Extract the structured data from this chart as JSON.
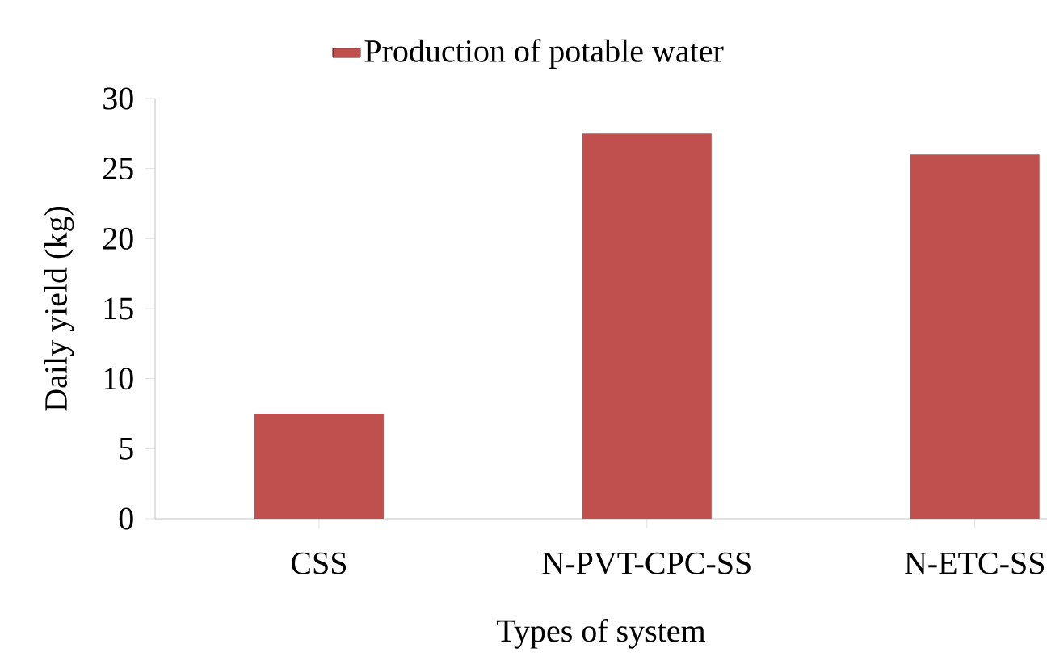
{
  "chart_data": {
    "type": "bar",
    "categories": [
      "CSS",
      "N-PVT-CPC-SS",
      "N-ETC-SS"
    ],
    "series": [
      {
        "name": "Production of potable water",
        "color": "#c0504d",
        "values": [
          7.5,
          27.5,
          26
        ]
      }
    ],
    "xlabel": "Types of system",
    "ylabel": "Daily yield (kg)",
    "ylim": [
      0,
      30
    ],
    "yticks": [
      0,
      5,
      10,
      15,
      20,
      25,
      30
    ],
    "legend": "top",
    "grid": false
  }
}
